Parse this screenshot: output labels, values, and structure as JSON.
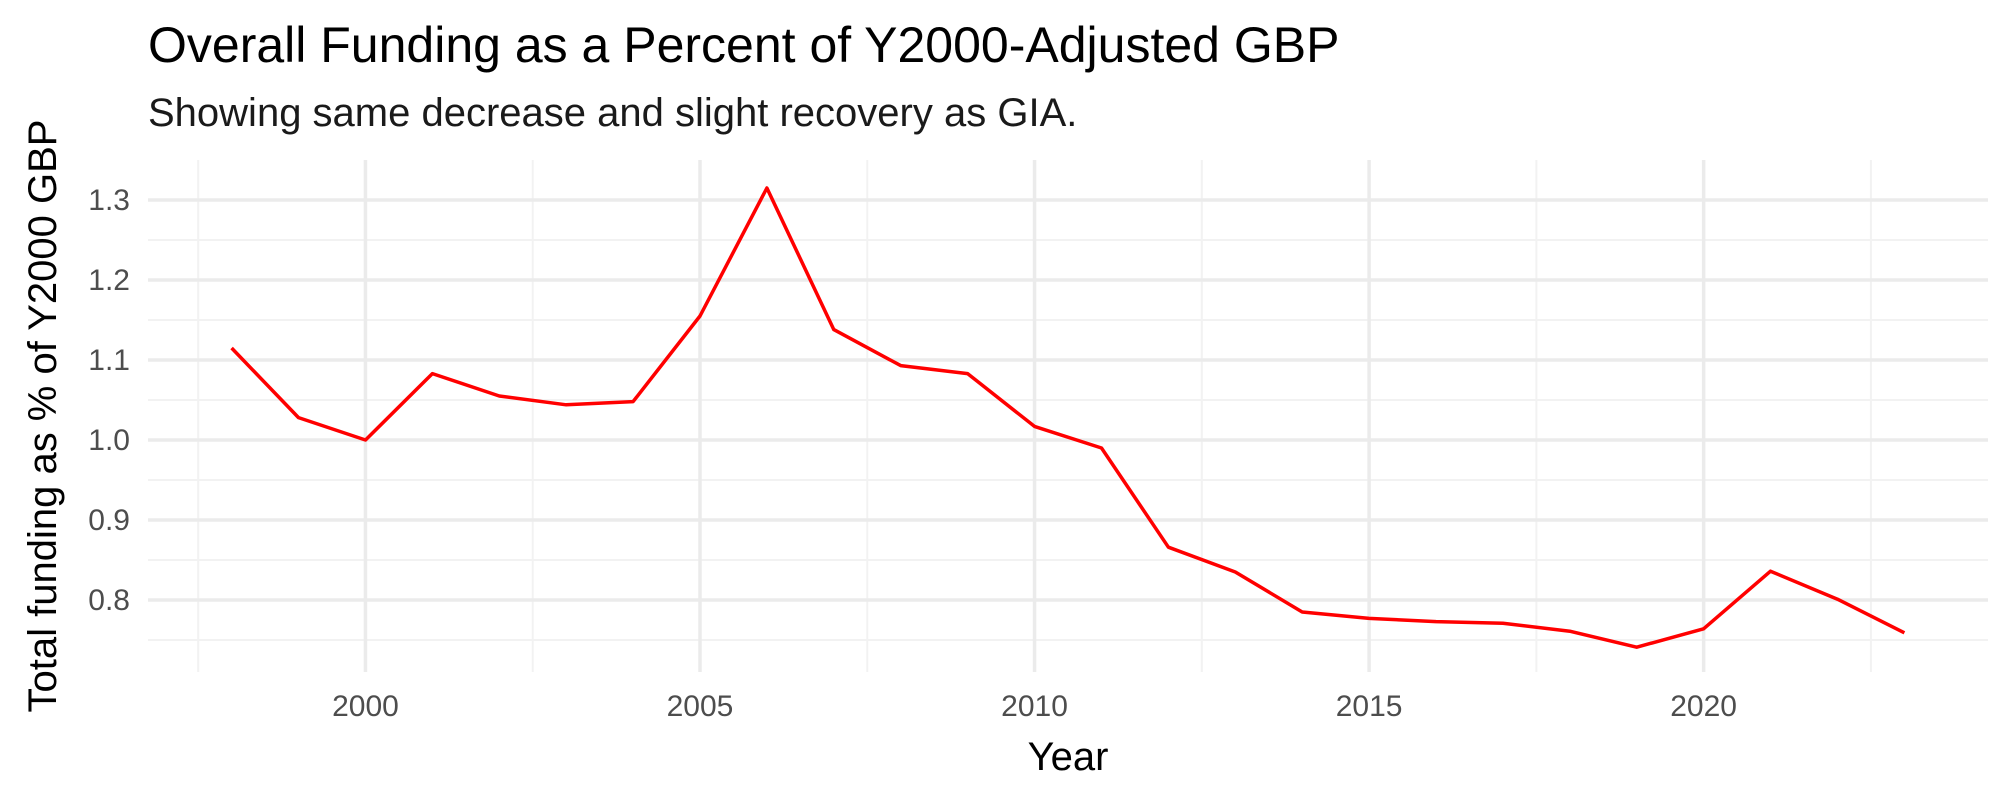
{
  "chart_data": {
    "type": "line",
    "title": "Overall Funding as a Percent of Y2000-Adjusted GBP",
    "subtitle": "Showing same decrease and slight recovery as GIA.",
    "xlabel": "Year",
    "ylabel": "Total funding as % of Y2000 GBP",
    "xlim": [
      1996.75,
      2024.25
    ],
    "ylim": [
      0.71,
      1.35
    ],
    "x_ticks": [
      2000,
      2005,
      2010,
      2015,
      2020
    ],
    "x_tick_labels": [
      "2000",
      "2005",
      "2010",
      "2015",
      "2020"
    ],
    "x_minor_ticks": [
      1997.5,
      2002.5,
      2007.5,
      2012.5,
      2017.5,
      2022.5
    ],
    "y_ticks": [
      0.8,
      0.9,
      1.0,
      1.1,
      1.2,
      1.3
    ],
    "y_tick_labels": [
      "0.8",
      "0.9",
      "1.0",
      "1.1",
      "1.2",
      "1.3"
    ],
    "y_minor_ticks": [
      0.75,
      0.85,
      0.95,
      1.05,
      1.15,
      1.25
    ],
    "grid": true,
    "legend": "none",
    "series": [
      {
        "color": "#ff0000",
        "x": [
          1998,
          1999,
          2000,
          2001,
          2002,
          2003,
          2004,
          2005,
          2006,
          2007,
          2008,
          2009,
          2010,
          2011,
          2012,
          2013,
          2014,
          2015,
          2016,
          2017,
          2018,
          2019,
          2020,
          2021,
          2022,
          2023
        ],
        "y": [
          1.115,
          1.028,
          1.0,
          1.083,
          1.055,
          1.044,
          1.048,
          1.155,
          1.315,
          1.138,
          1.093,
          1.083,
          1.017,
          0.99,
          0.866,
          0.835,
          0.785,
          0.777,
          0.773,
          0.771,
          0.761,
          0.741,
          0.764,
          0.836,
          0.801,
          0.759
        ]
      }
    ]
  }
}
